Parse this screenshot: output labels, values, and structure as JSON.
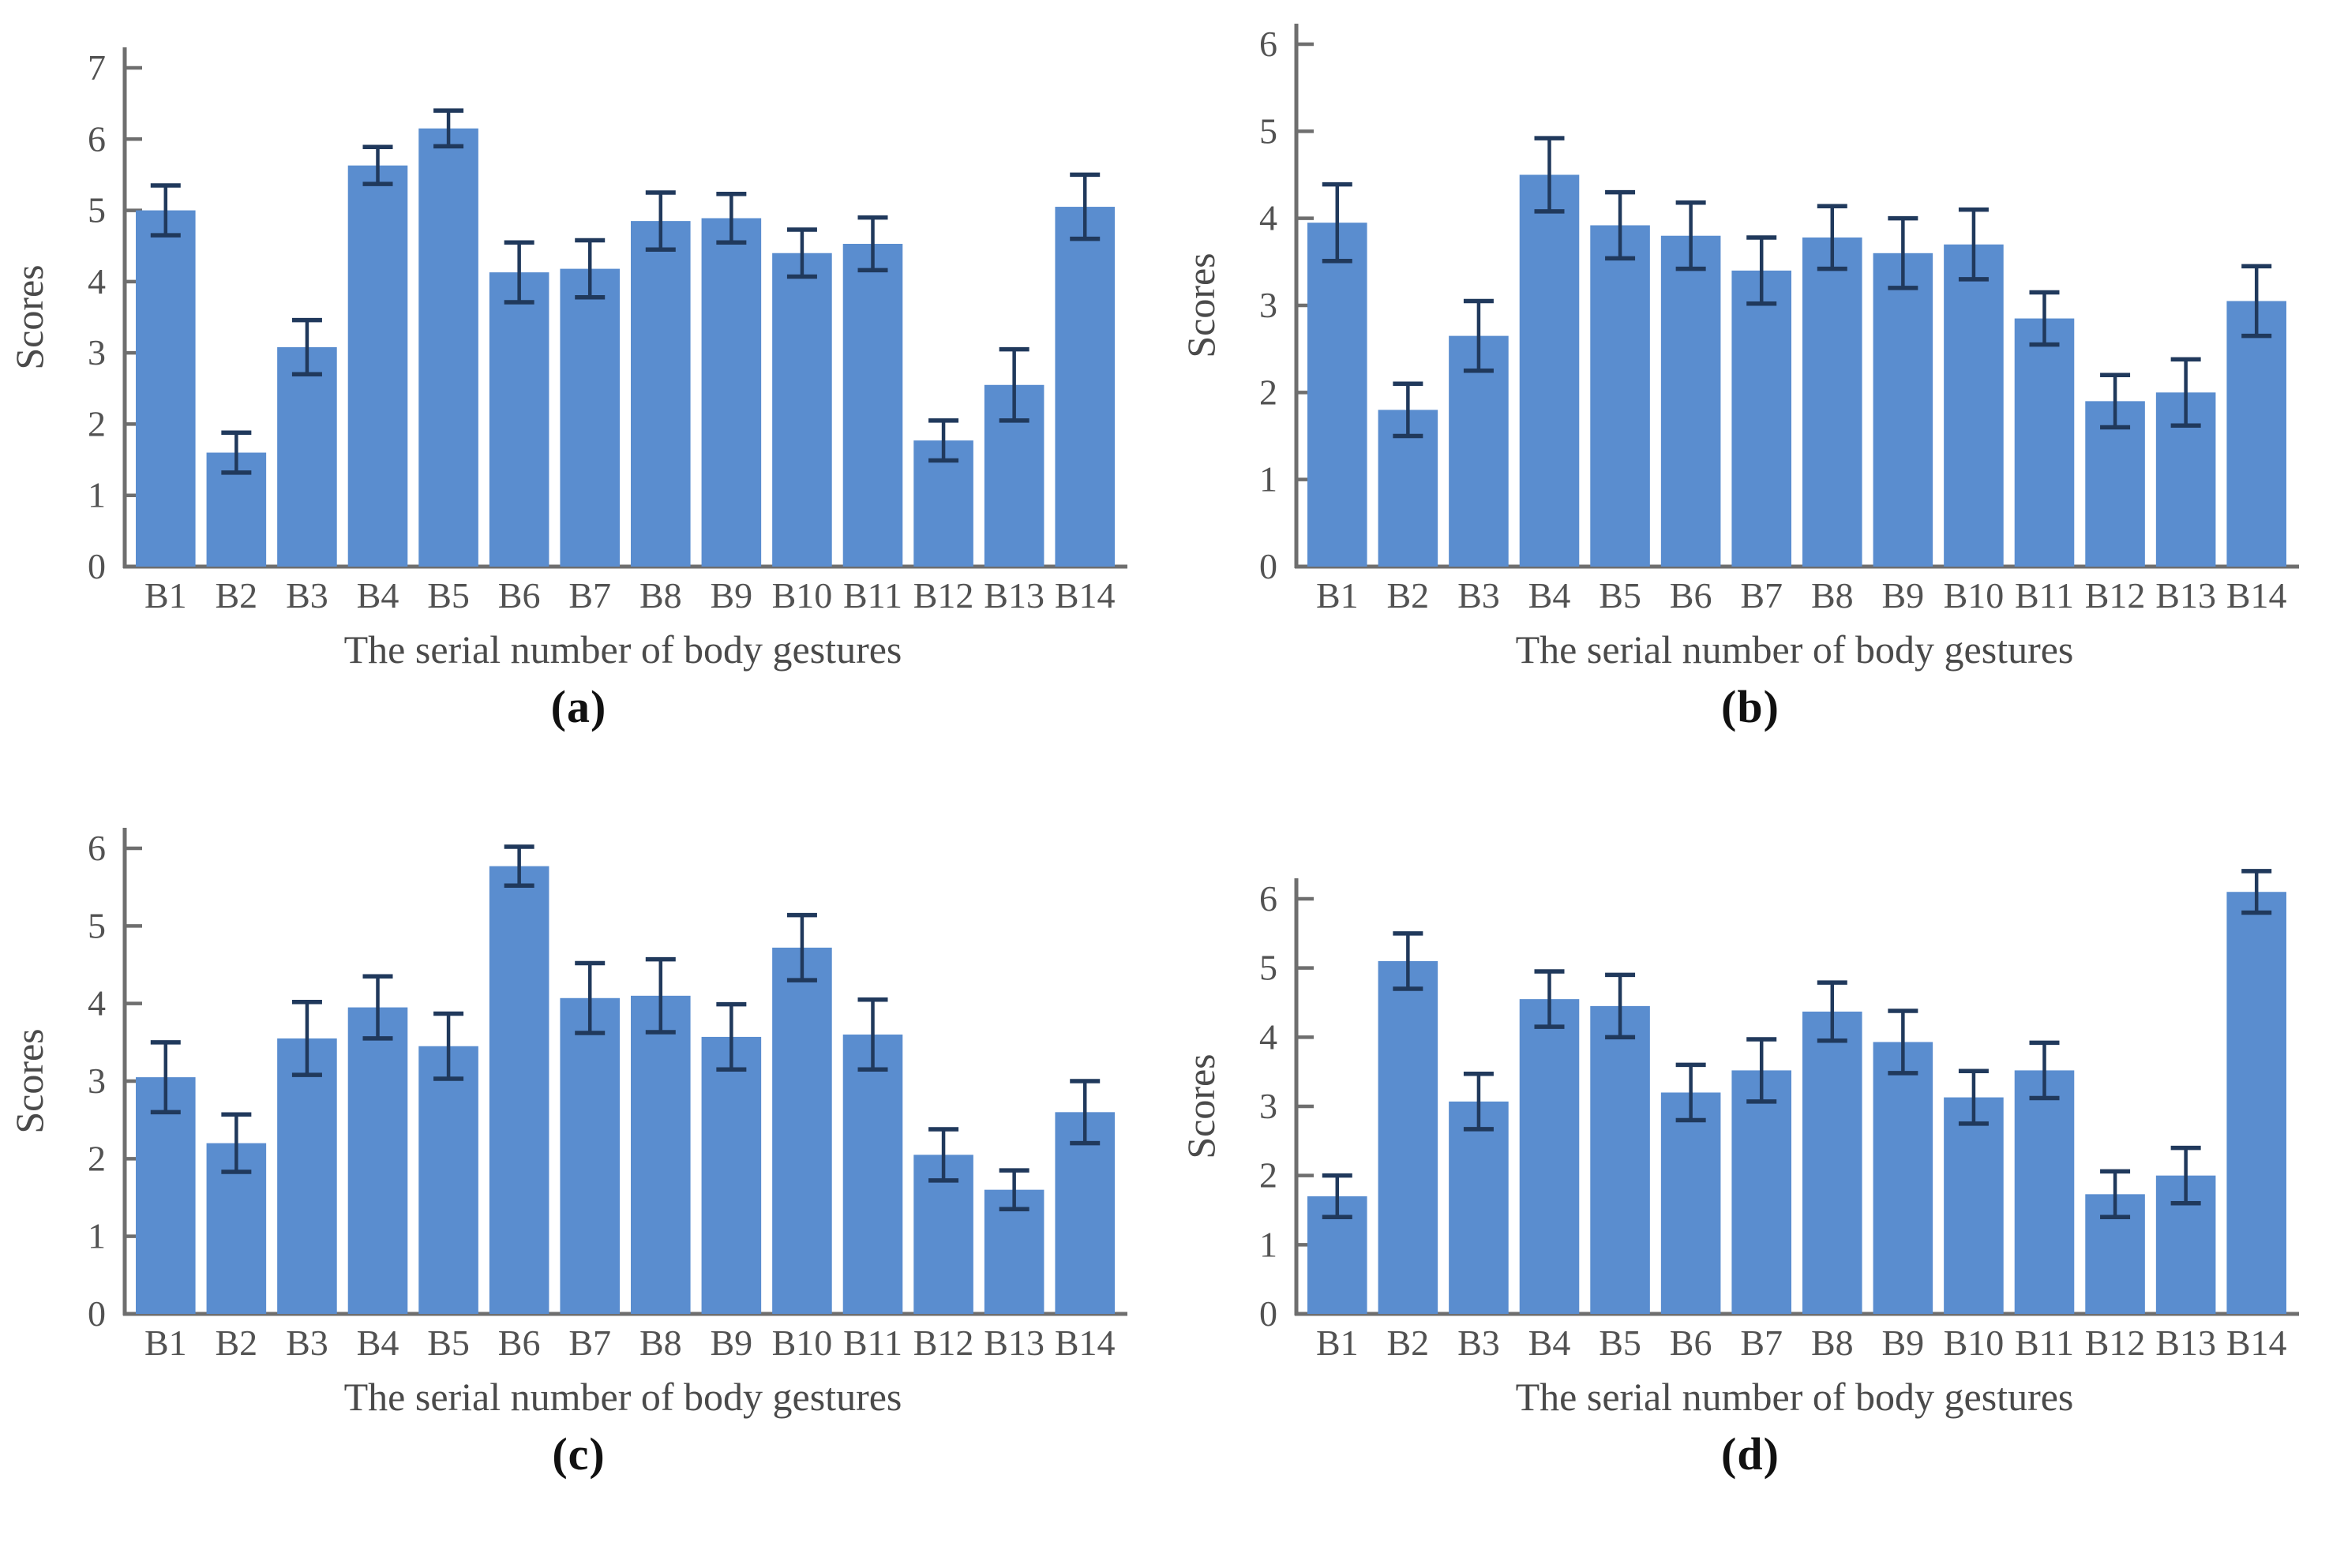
{
  "figure": {
    "ylabel": "Scores",
    "xlabel": "The serial number of body gestures",
    "colors": {
      "bar": "#5A8DCF",
      "error": "#20395C",
      "axis": "#6E6E6E",
      "tick_text": "#525252",
      "axis_label_text": "#4A4A4A",
      "caption_text": "#111111",
      "background": "#FFFFFF"
    }
  },
  "chart_data": [
    {
      "id": "a",
      "caption": "(a)",
      "type": "bar",
      "title": "",
      "xlabel": "The serial number of body gestures",
      "ylabel": "Scores",
      "ylim": [
        0,
        7
      ],
      "ytick_step": 1,
      "grid": false,
      "legend_position": "none",
      "categories": [
        "B1",
        "B2",
        "B3",
        "B4",
        "B5",
        "B6",
        "B7",
        "B8",
        "B9",
        "B10",
        "B11",
        "B12",
        "B13",
        "B14"
      ],
      "values": [
        5.0,
        1.6,
        3.08,
        5.63,
        6.15,
        4.13,
        4.18,
        4.85,
        4.89,
        4.4,
        4.53,
        1.77,
        2.55,
        5.05
      ],
      "errors": [
        0.35,
        0.28,
        0.38,
        0.26,
        0.25,
        0.42,
        0.4,
        0.4,
        0.34,
        0.33,
        0.37,
        0.28,
        0.5,
        0.45
      ]
    },
    {
      "id": "b",
      "caption": "(b)",
      "type": "bar",
      "title": "",
      "xlabel": "The serial number of body gestures",
      "ylabel": "Scores",
      "ylim": [
        0,
        6
      ],
      "ytick_step": 1,
      "grid": false,
      "legend_position": "none",
      "categories": [
        "B1",
        "B2",
        "B3",
        "B4",
        "B5",
        "B6",
        "B7",
        "B8",
        "B9",
        "B10",
        "B11",
        "B12",
        "B13",
        "B14"
      ],
      "values": [
        3.95,
        1.8,
        2.65,
        4.5,
        3.92,
        3.8,
        3.4,
        3.78,
        3.6,
        3.7,
        2.85,
        1.9,
        2.0,
        3.05
      ],
      "errors": [
        0.44,
        0.3,
        0.4,
        0.42,
        0.38,
        0.38,
        0.38,
        0.36,
        0.4,
        0.4,
        0.3,
        0.3,
        0.38,
        0.4
      ]
    },
    {
      "id": "c",
      "caption": "(c)",
      "type": "bar",
      "title": "",
      "xlabel": "The serial number of body gestures",
      "ylabel": "Scores",
      "ylim": [
        0,
        6
      ],
      "ytick_step": 1,
      "grid": false,
      "legend_position": "none",
      "categories": [
        "B1",
        "B2",
        "B3",
        "B4",
        "B5",
        "B6",
        "B7",
        "B8",
        "B9",
        "B10",
        "B11",
        "B12",
        "B13",
        "B14"
      ],
      "values": [
        3.05,
        2.2,
        3.55,
        3.95,
        3.45,
        5.77,
        4.07,
        4.1,
        3.57,
        4.72,
        3.6,
        2.05,
        1.6,
        2.6
      ],
      "errors": [
        0.45,
        0.37,
        0.47,
        0.4,
        0.42,
        0.25,
        0.45,
        0.47,
        0.42,
        0.42,
        0.45,
        0.33,
        0.25,
        0.4
      ]
    },
    {
      "id": "d",
      "caption": "(d)",
      "type": "bar",
      "title": "",
      "xlabel": "The serial number of body gestures",
      "ylabel": "Scores",
      "ylim": [
        0,
        6
      ],
      "ytick_step": 1,
      "grid": false,
      "legend_position": "none",
      "categories": [
        "B1",
        "B2",
        "B3",
        "B4",
        "B5",
        "B6",
        "B7",
        "B8",
        "B9",
        "B10",
        "B11",
        "B12",
        "B13",
        "B14"
      ],
      "values": [
        1.7,
        5.1,
        3.07,
        4.55,
        4.45,
        3.2,
        3.52,
        4.37,
        3.93,
        3.13,
        3.52,
        1.73,
        2.0,
        6.1
      ],
      "errors": [
        0.3,
        0.4,
        0.4,
        0.4,
        0.45,
        0.4,
        0.45,
        0.42,
        0.45,
        0.38,
        0.4,
        0.33,
        0.4,
        0.3
      ]
    }
  ]
}
